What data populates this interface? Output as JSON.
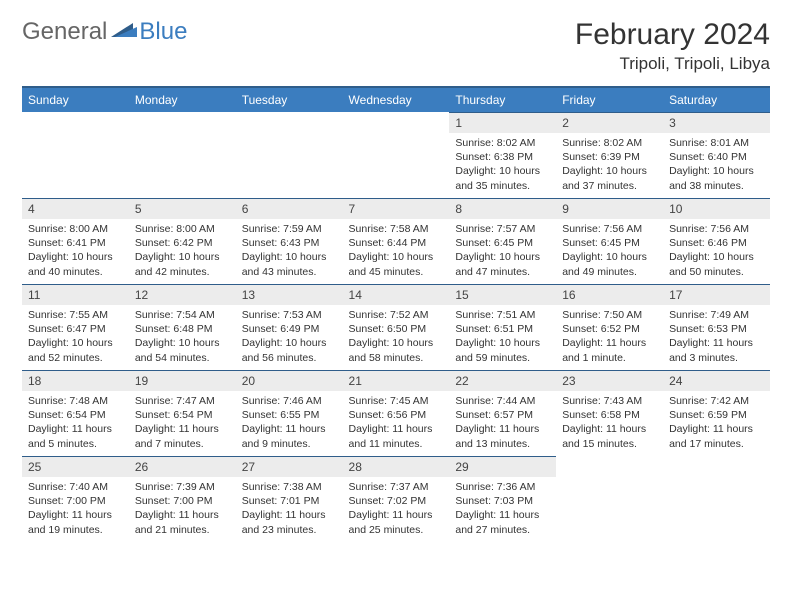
{
  "brand": {
    "part1": "General",
    "part2": "Blue"
  },
  "title": "February 2024",
  "location": "Tripoli, Tripoli, Libya",
  "colors": {
    "header_bg": "#3b7dbf",
    "header_border": "#2f5d8a",
    "daynum_bg": "#ececec",
    "text": "#333333",
    "page_bg": "#ffffff"
  },
  "daynames": [
    "Sunday",
    "Monday",
    "Tuesday",
    "Wednesday",
    "Thursday",
    "Friday",
    "Saturday"
  ],
  "weeks": [
    [
      null,
      null,
      null,
      null,
      {
        "n": "1",
        "sunrise": "8:02 AM",
        "sunset": "6:38 PM",
        "daylight": "10 hours and 35 minutes."
      },
      {
        "n": "2",
        "sunrise": "8:02 AM",
        "sunset": "6:39 PM",
        "daylight": "10 hours and 37 minutes."
      },
      {
        "n": "3",
        "sunrise": "8:01 AM",
        "sunset": "6:40 PM",
        "daylight": "10 hours and 38 minutes."
      }
    ],
    [
      {
        "n": "4",
        "sunrise": "8:00 AM",
        "sunset": "6:41 PM",
        "daylight": "10 hours and 40 minutes."
      },
      {
        "n": "5",
        "sunrise": "8:00 AM",
        "sunset": "6:42 PM",
        "daylight": "10 hours and 42 minutes."
      },
      {
        "n": "6",
        "sunrise": "7:59 AM",
        "sunset": "6:43 PM",
        "daylight": "10 hours and 43 minutes."
      },
      {
        "n": "7",
        "sunrise": "7:58 AM",
        "sunset": "6:44 PM",
        "daylight": "10 hours and 45 minutes."
      },
      {
        "n": "8",
        "sunrise": "7:57 AM",
        "sunset": "6:45 PM",
        "daylight": "10 hours and 47 minutes."
      },
      {
        "n": "9",
        "sunrise": "7:56 AM",
        "sunset": "6:45 PM",
        "daylight": "10 hours and 49 minutes."
      },
      {
        "n": "10",
        "sunrise": "7:56 AM",
        "sunset": "6:46 PM",
        "daylight": "10 hours and 50 minutes."
      }
    ],
    [
      {
        "n": "11",
        "sunrise": "7:55 AM",
        "sunset": "6:47 PM",
        "daylight": "10 hours and 52 minutes."
      },
      {
        "n": "12",
        "sunrise": "7:54 AM",
        "sunset": "6:48 PM",
        "daylight": "10 hours and 54 minutes."
      },
      {
        "n": "13",
        "sunrise": "7:53 AM",
        "sunset": "6:49 PM",
        "daylight": "10 hours and 56 minutes."
      },
      {
        "n": "14",
        "sunrise": "7:52 AM",
        "sunset": "6:50 PM",
        "daylight": "10 hours and 58 minutes."
      },
      {
        "n": "15",
        "sunrise": "7:51 AM",
        "sunset": "6:51 PM",
        "daylight": "10 hours and 59 minutes."
      },
      {
        "n": "16",
        "sunrise": "7:50 AM",
        "sunset": "6:52 PM",
        "daylight": "11 hours and 1 minute."
      },
      {
        "n": "17",
        "sunrise": "7:49 AM",
        "sunset": "6:53 PM",
        "daylight": "11 hours and 3 minutes."
      }
    ],
    [
      {
        "n": "18",
        "sunrise": "7:48 AM",
        "sunset": "6:54 PM",
        "daylight": "11 hours and 5 minutes."
      },
      {
        "n": "19",
        "sunrise": "7:47 AM",
        "sunset": "6:54 PM",
        "daylight": "11 hours and 7 minutes."
      },
      {
        "n": "20",
        "sunrise": "7:46 AM",
        "sunset": "6:55 PM",
        "daylight": "11 hours and 9 minutes."
      },
      {
        "n": "21",
        "sunrise": "7:45 AM",
        "sunset": "6:56 PM",
        "daylight": "11 hours and 11 minutes."
      },
      {
        "n": "22",
        "sunrise": "7:44 AM",
        "sunset": "6:57 PM",
        "daylight": "11 hours and 13 minutes."
      },
      {
        "n": "23",
        "sunrise": "7:43 AM",
        "sunset": "6:58 PM",
        "daylight": "11 hours and 15 minutes."
      },
      {
        "n": "24",
        "sunrise": "7:42 AM",
        "sunset": "6:59 PM",
        "daylight": "11 hours and 17 minutes."
      }
    ],
    [
      {
        "n": "25",
        "sunrise": "7:40 AM",
        "sunset": "7:00 PM",
        "daylight": "11 hours and 19 minutes."
      },
      {
        "n": "26",
        "sunrise": "7:39 AM",
        "sunset": "7:00 PM",
        "daylight": "11 hours and 21 minutes."
      },
      {
        "n": "27",
        "sunrise": "7:38 AM",
        "sunset": "7:01 PM",
        "daylight": "11 hours and 23 minutes."
      },
      {
        "n": "28",
        "sunrise": "7:37 AM",
        "sunset": "7:02 PM",
        "daylight": "11 hours and 25 minutes."
      },
      {
        "n": "29",
        "sunrise": "7:36 AM",
        "sunset": "7:03 PM",
        "daylight": "11 hours and 27 minutes."
      },
      null,
      null
    ]
  ],
  "labels": {
    "sunrise": "Sunrise: ",
    "sunset": "Sunset: ",
    "daylight": "Daylight: "
  }
}
